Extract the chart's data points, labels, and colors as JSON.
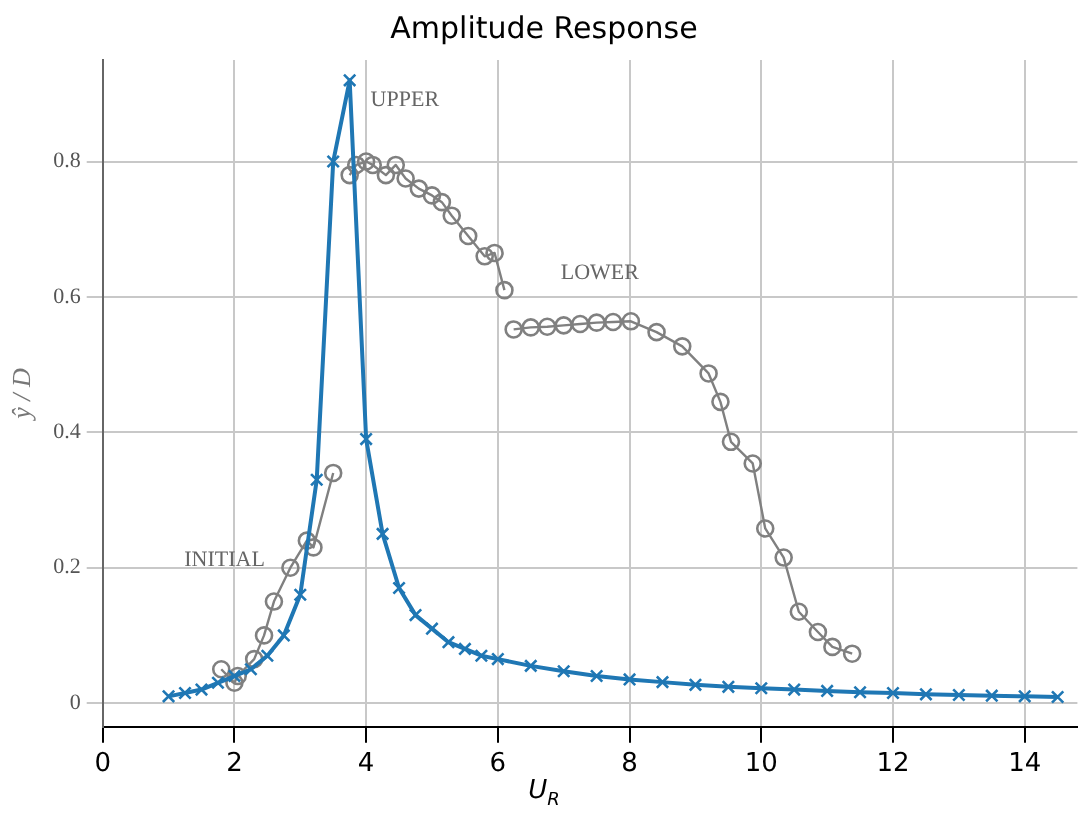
{
  "chart_data": {
    "type": "line",
    "title": "Amplitude Response",
    "xlabel": "U$_{R}$",
    "ylabel": "ŷ / D",
    "xlim": [
      0,
      14.8
    ],
    "ylim": [
      -0.035,
      0.95
    ],
    "xticks": [
      0,
      2,
      4,
      6,
      8,
      10,
      12,
      14
    ],
    "yticks": [
      0,
      0.2,
      0.4,
      0.6,
      0.8
    ],
    "grid": true,
    "legend": false,
    "annotations": [
      "INITIAL",
      "UPPER",
      "LOWER"
    ],
    "series": [
      {
        "color": "#808080",
        "marker": "circle",
        "x": [
          1.8,
          2.0,
          2.05,
          2.3,
          2.45,
          2.6,
          2.85,
          3.1,
          3.2,
          3.5
        ],
        "values": [
          0.05,
          0.03,
          0.04,
          0.065,
          0.1,
          0.15,
          0.2,
          0.24,
          0.23,
          0.34
        ]
      },
      {
        "color": "#808080",
        "marker": "circle",
        "x": [
          3.75,
          3.85,
          4.0,
          4.1,
          4.3,
          4.45,
          4.6,
          4.8,
          5.0,
          5.15,
          5.3,
          5.55,
          5.8,
          5.95,
          6.1
        ],
        "values": [
          0.78,
          0.795,
          0.8,
          0.795,
          0.78,
          0.795,
          0.775,
          0.76,
          0.75,
          0.74,
          0.72,
          0.69,
          0.66,
          0.665,
          0.61
        ]
      },
      {
        "color": "#808080",
        "marker": "circle",
        "x": [
          6.24,
          6.5,
          6.75,
          7.0,
          7.25,
          7.5,
          7.75,
          8.02,
          8.41,
          8.8,
          9.2,
          9.38,
          9.54,
          9.87,
          10.06,
          10.34,
          10.57,
          10.86,
          11.08,
          11.38
        ],
        "values": [
          0.552,
          0.555,
          0.556,
          0.558,
          0.56,
          0.562,
          0.563,
          0.564,
          0.548,
          0.527,
          0.487,
          0.445,
          0.386,
          0.354,
          0.258,
          0.215,
          0.135,
          0.105,
          0.083,
          0.073
        ]
      },
      {
        "color": "#1f77b4",
        "marker": "cross",
        "x": [
          1.0,
          1.25,
          1.5,
          1.75,
          2.0,
          2.25,
          2.5,
          2.75,
          3.0,
          3.25,
          3.5,
          3.75,
          4.0,
          4.25,
          4.5,
          4.75,
          5.0,
          5.25,
          5.5,
          5.75,
          6.0,
          6.5,
          7.0,
          7.5,
          8.0,
          8.5,
          9.0,
          9.5,
          10.0,
          10.5,
          11.0,
          11.5,
          12.0,
          12.5,
          13.0,
          13.5,
          14.0,
          14.5
        ],
        "values": [
          0.01,
          0.015,
          0.02,
          0.03,
          0.04,
          0.05,
          0.07,
          0.1,
          0.16,
          0.33,
          0.8,
          0.92,
          0.39,
          0.25,
          0.17,
          0.13,
          0.11,
          0.09,
          0.08,
          0.07,
          0.065,
          0.055,
          0.047,
          0.04,
          0.035,
          0.031,
          0.027,
          0.024,
          0.022,
          0.02,
          0.018,
          0.016,
          0.015,
          0.013,
          0.012,
          0.011,
          0.01,
          0.009
        ]
      }
    ]
  }
}
